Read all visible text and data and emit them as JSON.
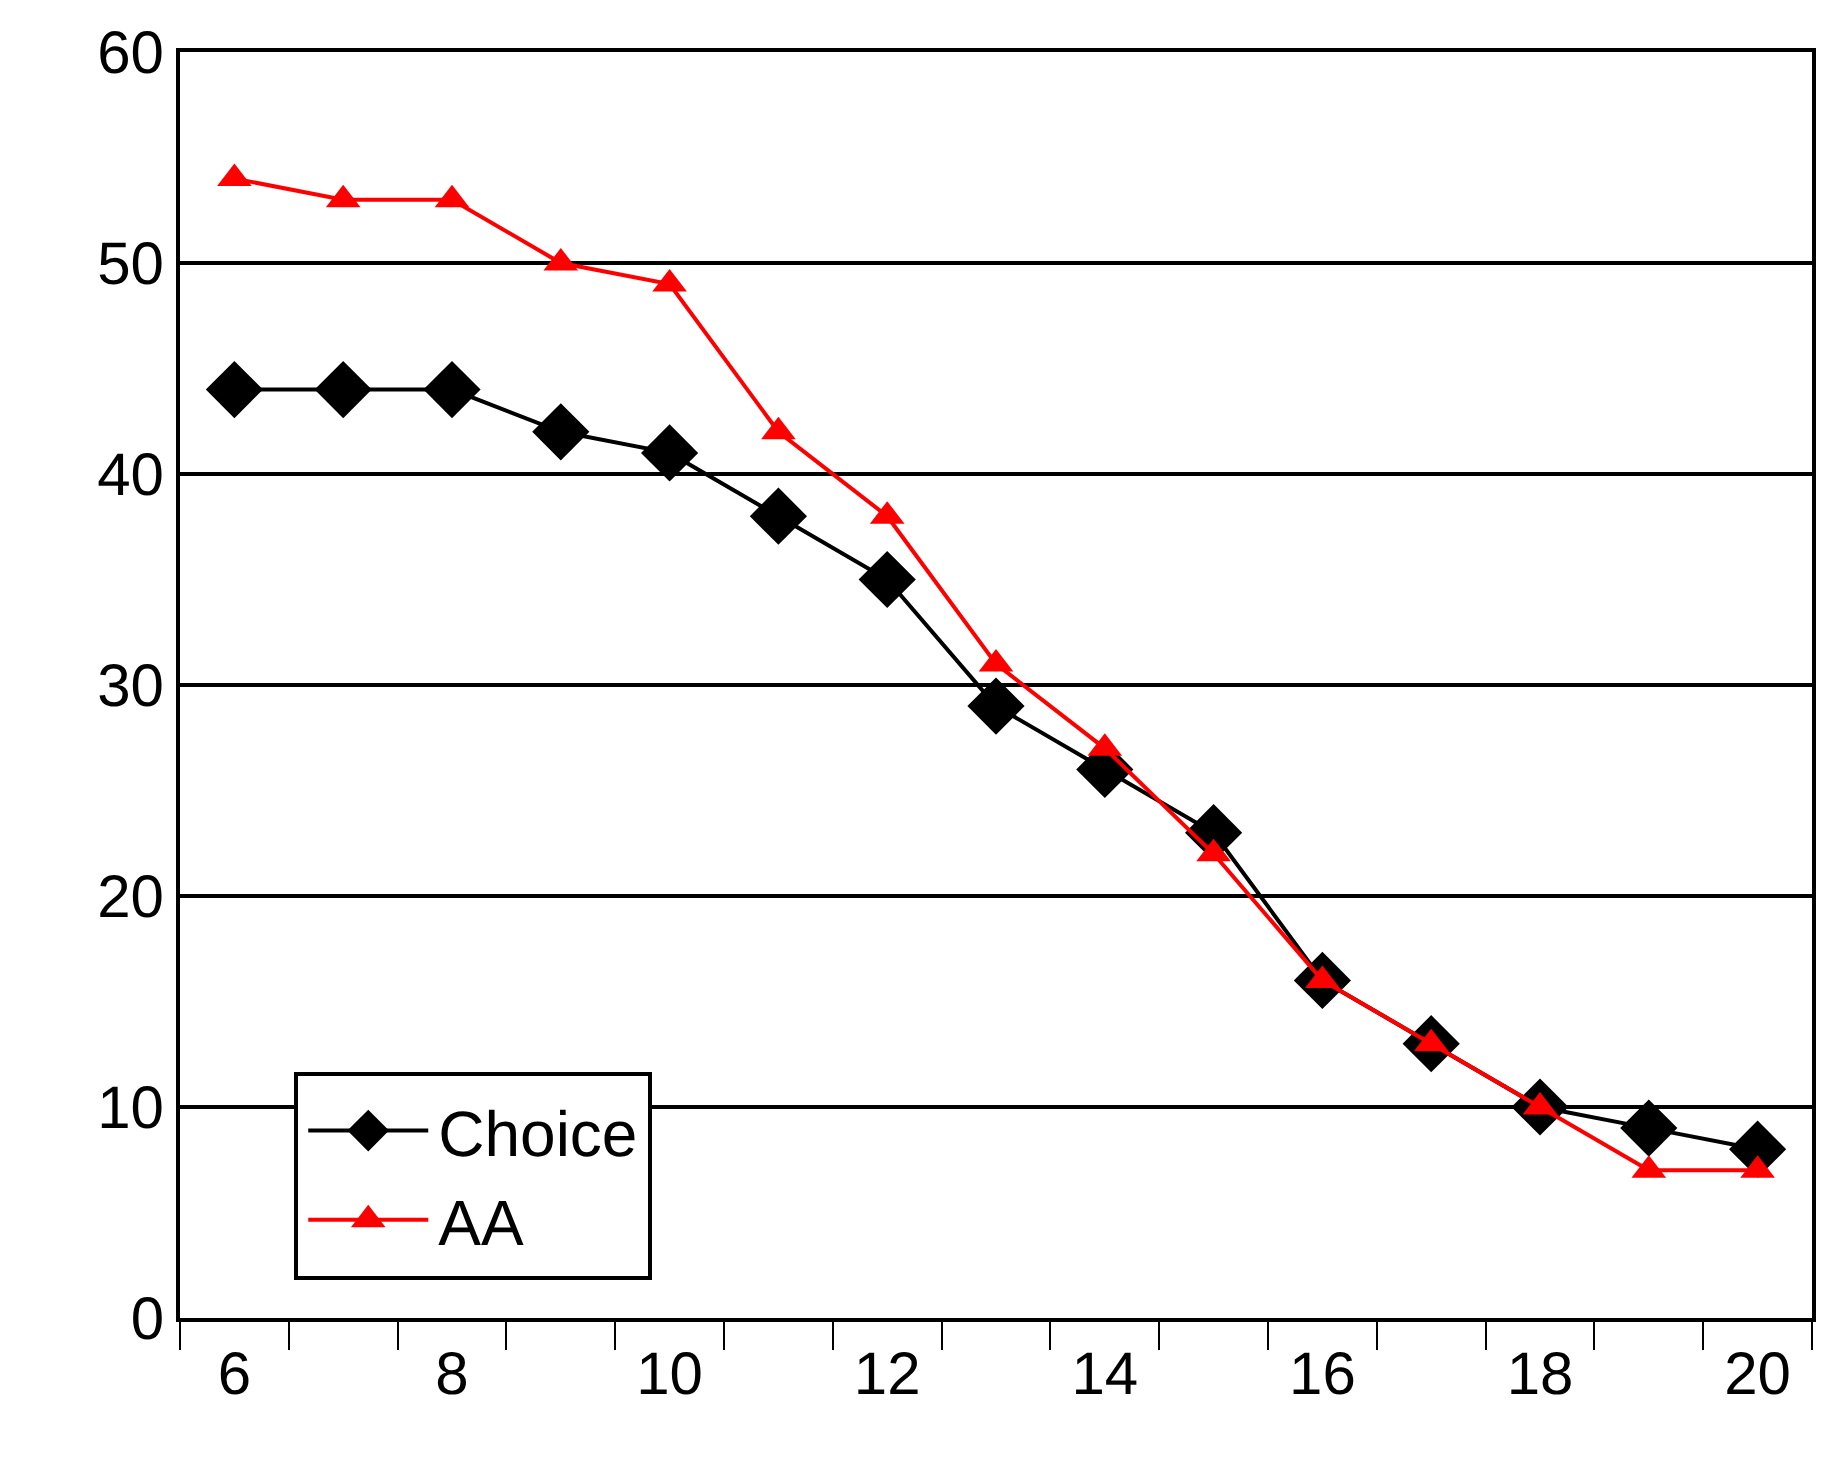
{
  "chart_data": {
    "type": "line",
    "categories": [
      "6",
      null,
      "8",
      null,
      "10",
      null,
      "12",
      null,
      "14",
      null,
      "16",
      null,
      "18",
      null,
      "20"
    ],
    "series": [
      {
        "name": "Choice",
        "color": "#000000",
        "marker": "diamond",
        "values": [
          44,
          44,
          44,
          42,
          41,
          38,
          35,
          29,
          26,
          23,
          16,
          13,
          10,
          9,
          8
        ]
      },
      {
        "name": "AA",
        "color": "#ff0000",
        "marker": "triangle",
        "values": [
          54,
          53,
          53,
          50,
          49,
          42,
          38,
          31,
          27,
          22,
          16,
          13,
          10,
          7,
          7
        ]
      }
    ],
    "ylim": [
      0,
      60
    ],
    "yticks": [
      0,
      10,
      20,
      30,
      40,
      50,
      60
    ],
    "grid": "y",
    "legend": "bottom left",
    "line_style": "solid"
  }
}
